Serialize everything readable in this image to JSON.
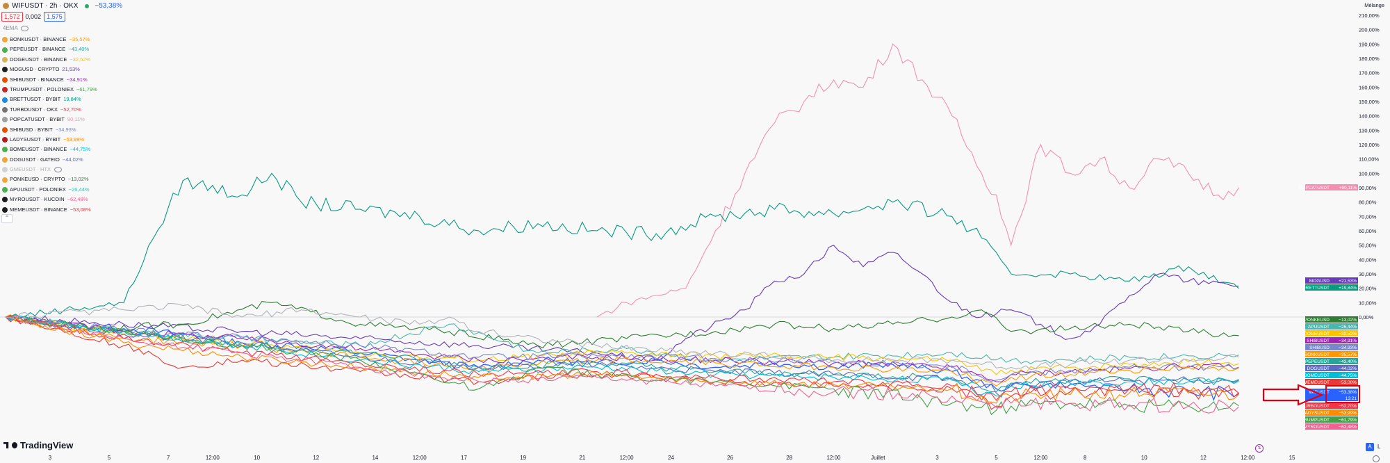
{
  "header": {
    "title": "WIFUSDT · 2h · OKX",
    "change": "−53,38%",
    "bid": "1,572",
    "spread": "0,002",
    "ask": "1,575",
    "indicator": "4EMA"
  },
  "legend": [
    {
      "label": "BONKUSDT · BINANCE",
      "change": "−35,57%",
      "color": "#ff9800",
      "icon": "#f0a73a"
    },
    {
      "label": "PEPEUSDT · BINANCE",
      "change": "−43,40%",
      "color": "#26a69a",
      "icon": "#4caf50"
    },
    {
      "label": "DOGEUSDT · BINANCE",
      "change": "−32,52%",
      "color": "#f9c500",
      "icon": "#d4b45a"
    },
    {
      "label": "MOGUSD · CRYPTO",
      "change": "21,53%",
      "color": "#673ab7",
      "icon": "#1e1e1e"
    },
    {
      "label": "SHIBUSDT · BINANCE",
      "change": "−34,91%",
      "color": "#9c27b0",
      "icon": "#e65100"
    },
    {
      "label": "TRUMPUSDT · POLONIEX",
      "change": "−61,79%",
      "color": "#43a047",
      "icon": "#c62828"
    },
    {
      "label": "BRETTUSDT · BYBIT",
      "change": "19,84%",
      "color": "#089981",
      "icon": "#1e88e5"
    },
    {
      "label": "TURBOUSDT · OKX",
      "change": "−52,70%",
      "color": "#f23645",
      "icon": "#757575"
    },
    {
      "label": "POPCATUSDT · BYBIT",
      "change": "90,11%",
      "color": "#f48fb1",
      "icon": "#9e9e9e"
    },
    {
      "label": "SHIBUSD · BYBIT",
      "change": "−34,93%",
      "color": "#7986cb",
      "icon": "#e65100"
    },
    {
      "label": "LADYSUSDT · BYBIT",
      "change": "−53,99%",
      "color": "#fb8c00",
      "icon": "#b71c1c"
    },
    {
      "label": "BOMEUSDT · BINANCE",
      "change": "−44,75%",
      "color": "#00bcd4",
      "icon": "#4caf50"
    },
    {
      "label": "DOGUSDT · GATEIO",
      "change": "−44,02%",
      "color": "#5c6bc0",
      "icon": "#f0a73a"
    },
    {
      "label": "GMEUSDT · HTX",
      "change": "",
      "color": "#b0b3ba",
      "icon": "#cfd2d8",
      "hidden": true
    },
    {
      "label": "PONKEUSD · CRYPTO",
      "change": "−13,02%",
      "color": "#2e7d32",
      "icon": "#f0a73a"
    },
    {
      "label": "APUUSDT · POLONIEX",
      "change": "−26,44%",
      "color": "#4db6ac",
      "icon": "#4caf50"
    },
    {
      "label": "MYROUSDT · KUCOIN",
      "change": "−62,48%",
      "color": "#f06292",
      "icon": "#1e1e1e"
    },
    {
      "label": "MEMEUSDT · BINANCE",
      "change": "−53,08%",
      "color": "#e53935",
      "icon": "#1e1e1e"
    }
  ],
  "scale_label": "Mélange",
  "logo": "TradingView",
  "buttons": {
    "auto": "A",
    "log": "L"
  },
  "colors": {
    "wif": "#2962ff",
    "arrow": "#e0000f",
    "zero_line": "#b2b5be"
  },
  "right_labels": [
    {
      "name": "POPCATUSDT",
      "value": "+90,11%",
      "color": "#f48fb1"
    },
    {
      "name": "MOGUSD",
      "value": "+21,53%",
      "color": "#673ab7"
    },
    {
      "name": "BRETTUSDT",
      "value": "+19,84%",
      "color": "#089981"
    },
    {
      "name": "PONKEUSD",
      "value": "−13,02%",
      "color": "#2e7d32"
    },
    {
      "name": "APUUSDT",
      "value": "−26,44%",
      "color": "#4db6ac"
    },
    {
      "name": "DOGEUSDT",
      "value": "−32,52%",
      "color": "#f9c500"
    },
    {
      "name": "SHIBUSDT",
      "value": "−34,91%",
      "color": "#9c27b0"
    },
    {
      "name": "SHIBUSD",
      "value": "−34,93%",
      "color": "#7986cb"
    },
    {
      "name": "BONKUSDT",
      "value": "−35,57%",
      "color": "#ff9800"
    },
    {
      "name": "PEPEUSDT",
      "value": "−43,40%",
      "color": "#26a69a"
    },
    {
      "name": "DOGUSDT",
      "value": "−44,02%",
      "color": "#5c6bc0"
    },
    {
      "name": "BOMEUSDT",
      "value": "−44,75%",
      "color": "#00bcd4"
    },
    {
      "name": "MEMEUSDT",
      "value": "−53,08%",
      "color": "#e53935"
    },
    {
      "name": "WIFUSDT",
      "value": "−53,38%",
      "sub": "13:21",
      "color": "#2962ff"
    },
    {
      "name": "TURBOUSDT",
      "value": "−52,70%",
      "color": "#f23645"
    },
    {
      "name": "LADYSUSDT",
      "value": "−53,99%",
      "color": "#fb8c00"
    },
    {
      "name": "TRUMPUSDT",
      "value": "−61,79%",
      "color": "#43a047"
    },
    {
      "name": "MYROUSDT",
      "value": "−62,48%",
      "color": "#f06292"
    }
  ],
  "chart_data": {
    "type": "line",
    "title": "WIFUSDT · 2h · OKX",
    "y_axis": {
      "unit": "%",
      "range": [
        -60,
        210
      ],
      "ticks": [
        210,
        200,
        190,
        180,
        170,
        160,
        150,
        140,
        130,
        120,
        110,
        100,
        90,
        80,
        70,
        60,
        50,
        40,
        30,
        20,
        10,
        0
      ],
      "tick_labels": [
        "210,00%",
        "200,00%",
        "190,00%",
        "180,00%",
        "170,00%",
        "160,00%",
        "150,00%",
        "140,00%",
        "130,00%",
        "120,00%",
        "110,00%",
        "100,00%",
        "90,00%",
        "80,00%",
        "70,00%",
        "60,00%",
        "50,00%",
        "40,00%",
        "30,00%",
        "20,00%",
        "10,00%",
        "0,00%"
      ]
    },
    "x_axis": {
      "range": [
        0,
        43
      ],
      "ticks": [
        {
          "t": 1.5,
          "label": "3"
        },
        {
          "t": 3.5,
          "label": "5"
        },
        {
          "t": 5.5,
          "label": "7"
        },
        {
          "t": 7.0,
          "label": "12:00"
        },
        {
          "t": 8.5,
          "label": "10"
        },
        {
          "t": 10.5,
          "label": "12"
        },
        {
          "t": 12.5,
          "label": "14"
        },
        {
          "t": 14.0,
          "label": "12:00"
        },
        {
          "t": 15.5,
          "label": "17"
        },
        {
          "t": 17.5,
          "label": "19"
        },
        {
          "t": 19.5,
          "label": "21"
        },
        {
          "t": 21.0,
          "label": "12:00"
        },
        {
          "t": 22.5,
          "label": "24"
        },
        {
          "t": 24.5,
          "label": "26"
        },
        {
          "t": 26.5,
          "label": "28"
        },
        {
          "t": 28.0,
          "label": "12:00"
        },
        {
          "t": 29.5,
          "label": "Juillet"
        },
        {
          "t": 31.5,
          "label": "3"
        },
        {
          "t": 33.5,
          "label": "5"
        },
        {
          "t": 35.0,
          "label": "12:00"
        },
        {
          "t": 36.5,
          "label": "8"
        },
        {
          "t": 38.5,
          "label": "10"
        },
        {
          "t": 40.5,
          "label": "12"
        },
        {
          "t": 42.0,
          "label": "12:00"
        },
        {
          "t": 43.5,
          "label": "15"
        }
      ]
    },
    "grid": false,
    "legend_position": "top-left",
    "series": [
      {
        "name": "WIFUSDT",
        "color": "#2962ff",
        "t": [
          0,
          2,
          4,
          6,
          8,
          10,
          12,
          14,
          16,
          18,
          20,
          22,
          24,
          26,
          28,
          30,
          32,
          33.5,
          34,
          36,
          38,
          40,
          41.7
        ],
        "values": [
          0,
          -5,
          -8,
          -12,
          -18,
          -20,
          -25,
          -30,
          -35,
          -30,
          -32,
          -30,
          -35,
          -32,
          -35,
          -33,
          -38,
          -50,
          -48,
          -47,
          -50,
          -52,
          -53.38
        ]
      },
      {
        "name": "POPCATUSDT",
        "color": "#f48fb1",
        "t": [
          20,
          21,
          22,
          23,
          24,
          25,
          26,
          27,
          28,
          29,
          30,
          31,
          32,
          33,
          33.5,
          34,
          35,
          36,
          37,
          38,
          39,
          40,
          41,
          41.7
        ],
        "values": [
          0,
          10,
          15,
          20,
          60,
          100,
          135,
          150,
          165,
          160,
          190,
          165,
          140,
          100,
          85,
          50,
          120,
          100,
          110,
          90,
          110,
          100,
          85,
          90.11
        ]
      },
      {
        "name": "BRETTUSDT",
        "color": "#089981",
        "t": [
          0,
          2,
          4,
          5,
          6,
          8,
          9,
          10,
          12,
          14,
          16,
          18,
          20,
          22,
          24,
          26,
          28,
          30,
          32,
          33,
          34,
          36,
          38,
          40,
          41.7
        ],
        "values": [
          0,
          5,
          10,
          55,
          95,
          85,
          100,
          80,
          75,
          70,
          60,
          65,
          60,
          58,
          70,
          75,
          72,
          80,
          70,
          55,
          30,
          30,
          25,
          35,
          19.84
        ]
      },
      {
        "name": "MOGUSD",
        "color": "#673ab7",
        "t": [
          0,
          4,
          8,
          12,
          16,
          20,
          22,
          23,
          25,
          26,
          27,
          28,
          29,
          30,
          31,
          32,
          33,
          34,
          35,
          36,
          37,
          38,
          39,
          40,
          41.7
        ],
        "values": [
          0,
          -5,
          -10,
          -15,
          -20,
          -25,
          -30,
          -15,
          5,
          25,
          30,
          50,
          35,
          45,
          30,
          10,
          0,
          5,
          -5,
          -15,
          -5,
          15,
          30,
          25,
          21.53
        ]
      },
      {
        "name": "PONKEUSD",
        "color": "#2e7d32",
        "t": [
          0,
          3,
          6,
          9,
          12,
          15,
          18,
          21,
          24,
          26,
          28,
          30,
          32,
          33,
          34,
          36,
          38,
          40,
          41.7
        ],
        "values": [
          0,
          -8,
          -5,
          10,
          -5,
          -10,
          -20,
          -15,
          -10,
          -5,
          -8,
          -5,
          0,
          5,
          -10,
          -8,
          -5,
          -10,
          -13.02
        ]
      },
      {
        "name": "APUUSDT",
        "color": "#4db6ac",
        "t": [
          0,
          4,
          8,
          12,
          15,
          18,
          21,
          24,
          28,
          32,
          34,
          36,
          38,
          40,
          41.7
        ],
        "values": [
          0,
          -10,
          -15,
          -20,
          -5,
          -25,
          -22,
          -30,
          -28,
          -25,
          -30,
          -30,
          -28,
          -27,
          -26.44
        ]
      },
      {
        "name": "DOGEUSDT",
        "color": "#f9c500",
        "t": [
          0,
          4,
          8,
          12,
          16,
          20,
          24,
          28,
          32,
          33.5,
          34,
          36,
          38,
          40,
          41.7
        ],
        "values": [
          0,
          -12,
          -18,
          -25,
          -30,
          -25,
          -27,
          -28,
          -30,
          -40,
          -37,
          -35,
          -33,
          -31,
          -32.52
        ]
      },
      {
        "name": "SHIBUSDT",
        "color": "#9c27b0",
        "t": [
          0,
          4,
          8,
          12,
          16,
          20,
          24,
          28,
          32,
          33.5,
          34,
          36,
          38,
          40,
          41.7
        ],
        "values": [
          0,
          -10,
          -15,
          -22,
          -30,
          -28,
          -30,
          -32,
          -35,
          -45,
          -40,
          -38,
          -36,
          -34,
          -34.91
        ]
      },
      {
        "name": "SHIBUSD",
        "color": "#7986cb",
        "t": [
          0,
          4,
          8,
          12,
          16,
          20,
          24,
          28,
          32,
          33.5,
          34,
          36,
          38,
          40,
          41.7
        ],
        "values": [
          0,
          -9,
          -14,
          -20,
          -28,
          -27,
          -29,
          -31,
          -34,
          -44,
          -40,
          -37,
          -35,
          -35,
          -34.93
        ]
      },
      {
        "name": "BONKUSDT",
        "color": "#ff9800",
        "t": [
          0,
          4,
          8,
          12,
          16,
          20,
          24,
          28,
          32,
          33.5,
          34,
          36,
          38,
          40,
          41.7
        ],
        "values": [
          0,
          -15,
          -20,
          -28,
          -35,
          -30,
          -32,
          -35,
          -38,
          -48,
          -42,
          -40,
          -37,
          -35,
          -35.57
        ]
      },
      {
        "name": "PEPEUSDT",
        "color": "#26a69a",
        "t": [
          0,
          4,
          8,
          12,
          16,
          20,
          24,
          28,
          32,
          33.5,
          34,
          36,
          38,
          40,
          41.7
        ],
        "values": [
          0,
          -10,
          -20,
          -25,
          -35,
          -32,
          -38,
          -40,
          -42,
          -52,
          -46,
          -44,
          -43,
          -44,
          -43.4
        ]
      },
      {
        "name": "DOGUSDT",
        "color": "#5c6bc0",
        "t": [
          0,
          4,
          8,
          12,
          16,
          20,
          24,
          28,
          32,
          33.5,
          34,
          36,
          38,
          40,
          41.7
        ],
        "values": [
          0,
          -12,
          -18,
          -28,
          -35,
          -33,
          -38,
          -40,
          -43,
          -53,
          -47,
          -45,
          -44,
          -44,
          -44.02
        ]
      },
      {
        "name": "BOMEUSDT",
        "color": "#00bcd4",
        "t": [
          0,
          4,
          8,
          12,
          16,
          20,
          24,
          28,
          32,
          33.5,
          34,
          36,
          38,
          40,
          41.7
        ],
        "values": [
          0,
          -10,
          -20,
          -30,
          -38,
          -35,
          -40,
          -42,
          -44,
          -55,
          -48,
          -46,
          -45,
          -45,
          -44.75
        ]
      },
      {
        "name": "MEMEUSDT",
        "color": "#e53935",
        "t": [
          0,
          4,
          6,
          8,
          12,
          16,
          20,
          24,
          28,
          32,
          33.5,
          34,
          36,
          38,
          40,
          41.7
        ],
        "values": [
          0,
          -20,
          -35,
          -30,
          -38,
          -45,
          -40,
          -45,
          -48,
          -50,
          -62,
          -55,
          -52,
          -50,
          -52,
          -53.08
        ]
      },
      {
        "name": "TURBOUSDT",
        "color": "#f23645",
        "t": [
          0,
          4,
          8,
          12,
          16,
          20,
          24,
          28,
          32,
          33.5,
          34,
          36,
          38,
          40,
          41.7
        ],
        "values": [
          0,
          -15,
          -25,
          -32,
          -40,
          -38,
          -42,
          -45,
          -48,
          -58,
          -52,
          -50,
          -50,
          -51,
          -52.7
        ]
      },
      {
        "name": "LADYSUSDT",
        "color": "#fb8c00",
        "t": [
          0,
          4,
          8,
          12,
          16,
          20,
          24,
          28,
          32,
          33.5,
          34,
          36,
          38,
          40,
          41.7
        ],
        "values": [
          0,
          -18,
          -28,
          -35,
          -42,
          -40,
          -45,
          -47,
          -50,
          -60,
          -55,
          -54,
          -53,
          -53,
          -53.99
        ]
      },
      {
        "name": "TRUMPUSDT",
        "color": "#43a047",
        "t": [
          0,
          4,
          8,
          12,
          16,
          17,
          18,
          20,
          24,
          28,
          32,
          33.5,
          34,
          36,
          38,
          40,
          41.7
        ],
        "values": [
          0,
          -10,
          -20,
          -30,
          -50,
          -45,
          -35,
          -40,
          -45,
          -50,
          -60,
          -65,
          -62,
          -60,
          -62,
          -62,
          -61.79
        ]
      },
      {
        "name": "MYROUSDT",
        "color": "#f06292",
        "t": [
          0,
          4,
          8,
          12,
          16,
          20,
          24,
          28,
          32,
          33.5,
          34,
          36,
          38,
          40,
          41.7
        ],
        "values": [
          0,
          -15,
          -25,
          -35,
          -45,
          -42,
          -48,
          -52,
          -55,
          -63,
          -60,
          -60,
          -61,
          -62,
          -62.48
        ]
      },
      {
        "name": "GMEUSDT",
        "color": "#b0b3ba",
        "t": [
          0,
          4,
          6,
          8,
          10,
          12,
          14,
          15,
          16,
          18,
          20,
          24,
          28,
          32,
          34,
          36,
          38,
          40,
          41.7
        ],
        "values": [
          0,
          5,
          8,
          0,
          5,
          0,
          -5,
          0,
          -10,
          -15,
          -20,
          -25,
          -30,
          -30,
          -35,
          -33,
          -30,
          -30,
          -28
        ]
      }
    ]
  }
}
